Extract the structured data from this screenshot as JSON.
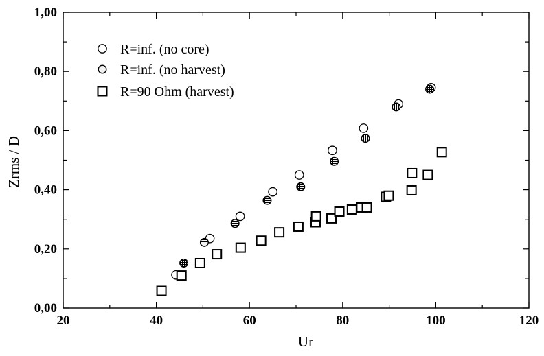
{
  "chart_data": {
    "type": "scatter",
    "title": "",
    "xlabel": "Ur",
    "ylabel": "Zrms / D",
    "xlim": [
      20,
      120
    ],
    "ylim": [
      0.0,
      1.0
    ],
    "x_ticks": [
      20,
      40,
      60,
      80,
      100,
      120
    ],
    "x_tick_labels": [
      "20",
      "40",
      "60",
      "80",
      "100",
      "120"
    ],
    "y_ticks": [
      0.0,
      0.2,
      0.4,
      0.6,
      0.8,
      1.0
    ],
    "y_tick_labels": [
      "0,00",
      "0,20",
      "0,40",
      "0,60",
      "0,80",
      "1,00"
    ],
    "grid": false,
    "legend_position": "top-left",
    "series": [
      {
        "name": "R=inf. (no core)",
        "marker": "open-circle",
        "x": [
          44.2,
          51.5,
          58.0,
          65.0,
          70.7,
          77.8,
          84.5,
          92.0,
          99.0
        ],
        "y": [
          0.112,
          0.235,
          0.31,
          0.393,
          0.45,
          0.533,
          0.608,
          0.69,
          0.745
        ]
      },
      {
        "name": "R=inf. (no harvest)",
        "marker": "hatched-circle",
        "x": [
          45.9,
          50.3,
          56.9,
          63.8,
          71.0,
          78.2,
          84.9,
          91.5,
          98.7
        ],
        "y": [
          0.152,
          0.222,
          0.286,
          0.364,
          0.41,
          0.496,
          0.574,
          0.68,
          0.74
        ]
      },
      {
        "name": "R=90 Ohm (harvest)",
        "marker": "open-square",
        "x": [
          41.1,
          45.4,
          49.4,
          53.0,
          58.1,
          62.5,
          66.4,
          70.5,
          74.2,
          74.3,
          77.6,
          79.3,
          82.0,
          84.0,
          85.2,
          89.3,
          89.9,
          94.8,
          94.9,
          98.3,
          101.3
        ],
        "y": [
          0.058,
          0.11,
          0.152,
          0.182,
          0.204,
          0.228,
          0.256,
          0.275,
          0.29,
          0.31,
          0.303,
          0.326,
          0.333,
          0.34,
          0.34,
          0.376,
          0.38,
          0.398,
          0.456,
          0.45,
          0.527
        ]
      }
    ]
  }
}
